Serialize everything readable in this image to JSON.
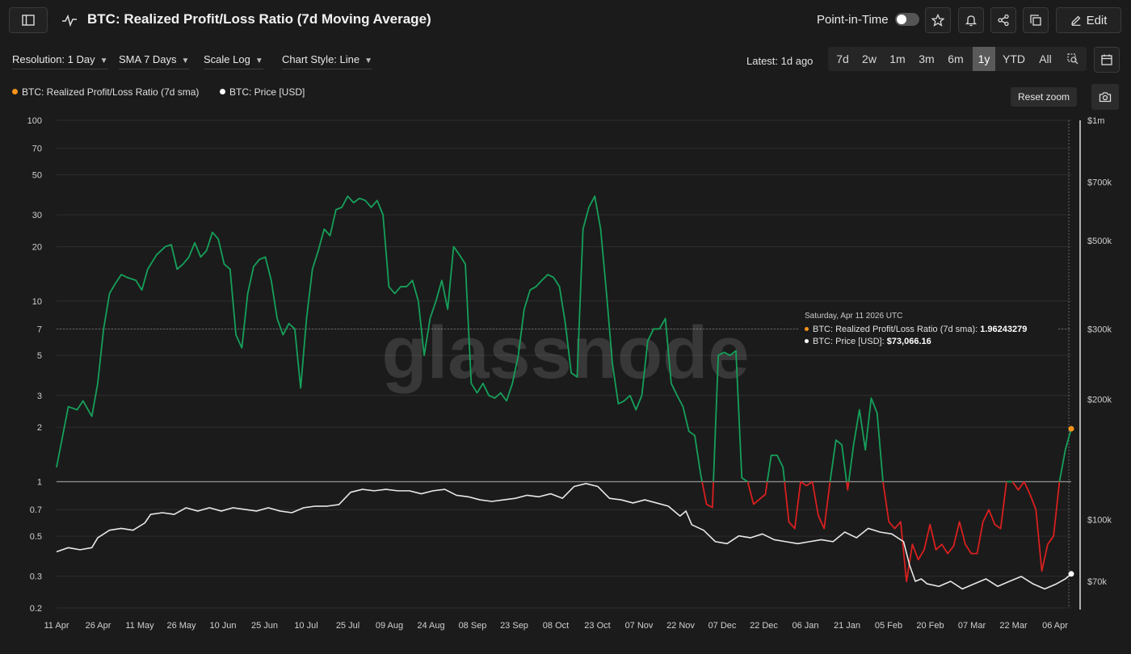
{
  "header": {
    "title": "BTC: Realized Profit/Loss Ratio (7d Moving Average)",
    "point_in_time_label": "Point-in-Time",
    "edit_label": "Edit"
  },
  "controls": {
    "resolution": "Resolution: 1 Day",
    "sma": "SMA 7 Days",
    "scale": "Scale Log",
    "chart_style": "Chart Style: Line",
    "latest": "Latest: 1d ago",
    "ranges": [
      "7d",
      "2w",
      "1m",
      "3m",
      "6m",
      "1y",
      "YTD",
      "All"
    ],
    "active_range": "1y",
    "reset_zoom": "Reset zoom"
  },
  "legend": {
    "ratio": "BTC: Realized Profit/Loss Ratio (7d sma)",
    "price": "BTC: Price [USD]"
  },
  "tooltip": {
    "date": "Saturday, Apr 11 2026 UTC",
    "ratio_label": "BTC: Realized Profit/Loss Ratio (7d sma):",
    "ratio_value": "1.96243279",
    "price_label": "BTC: Price [USD]:",
    "price_value": "$73,066.16"
  },
  "watermark": "glassnode",
  "colors": {
    "above_one": "#16a05a",
    "below_one": "#d91f1f",
    "price": "#e8e8e8",
    "marker": "#f7931a"
  },
  "chart_data": {
    "type": "line",
    "x_ticks": [
      "11 Apr",
      "26 Apr",
      "11 May",
      "26 May",
      "10 Jun",
      "25 Jun",
      "10 Jul",
      "25 Jul",
      "09 Aug",
      "24 Aug",
      "08 Sep",
      "23 Sep",
      "08 Oct",
      "23 Oct",
      "07 Nov",
      "22 Nov",
      "07 Dec",
      "22 Dec",
      "06 Jan",
      "21 Jan",
      "05 Feb",
      "20 Feb",
      "07 Mar",
      "22 Mar",
      "06 Apr"
    ],
    "left_axis": {
      "scale": "log",
      "ylim": [
        0.2,
        100
      ],
      "ticks": [
        "100",
        "70",
        "50",
        "30",
        "20",
        "10",
        "7",
        "5",
        "3",
        "2",
        "1",
        "0.7",
        "0.5",
        "0.3",
        "0.2"
      ]
    },
    "right_axis": {
      "scale": "log",
      "ticks": [
        [
          "$1m",
          1000000
        ],
        [
          "$700k",
          700000
        ],
        [
          "$500k",
          500000
        ],
        [
          "$300k",
          300000
        ],
        [
          "$200k",
          200000
        ],
        [
          "$100k",
          100000
        ],
        [
          "$70k",
          70000
        ]
      ]
    },
    "reference_line": 1,
    "series": [
      {
        "name": "BTC: Realized Profit/Loss Ratio (7d sma)",
        "axis": "left",
        "points": [
          [
            0,
            1.2
          ],
          [
            4,
            2.6
          ],
          [
            7,
            2.5
          ],
          [
            9,
            2.8
          ],
          [
            12,
            2.3
          ],
          [
            14,
            3.5
          ],
          [
            16,
            7
          ],
          [
            18,
            11
          ],
          [
            20,
            12.5
          ],
          [
            22,
            14
          ],
          [
            24,
            13.5
          ],
          [
            27,
            13
          ],
          [
            29,
            11.5
          ],
          [
            31,
            15
          ],
          [
            34,
            18
          ],
          [
            37,
            20
          ],
          [
            39,
            20.5
          ],
          [
            41,
            15
          ],
          [
            43,
            16
          ],
          [
            45,
            17.5
          ],
          [
            47,
            21
          ],
          [
            49,
            17.5
          ],
          [
            51,
            19
          ],
          [
            53,
            24
          ],
          [
            55,
            22
          ],
          [
            57,
            16
          ],
          [
            59,
            15
          ],
          [
            61,
            6.5
          ],
          [
            63,
            5.5
          ],
          [
            65,
            11
          ],
          [
            67,
            15.5
          ],
          [
            69,
            17
          ],
          [
            71,
            17.5
          ],
          [
            73,
            13
          ],
          [
            75,
            8
          ],
          [
            77,
            6.5
          ],
          [
            79,
            7.5
          ],
          [
            81,
            7
          ],
          [
            83,
            3.3
          ],
          [
            85,
            8
          ],
          [
            87,
            15
          ],
          [
            89,
            19
          ],
          [
            91,
            25
          ],
          [
            93,
            23
          ],
          [
            95,
            32
          ],
          [
            97,
            33
          ],
          [
            99,
            38
          ],
          [
            101,
            35
          ],
          [
            103,
            37
          ],
          [
            105,
            36
          ],
          [
            107,
            33
          ],
          [
            109,
            36
          ],
          [
            111,
            30
          ],
          [
            113,
            12
          ],
          [
            115,
            11
          ],
          [
            117,
            12
          ],
          [
            119,
            12
          ],
          [
            121,
            13
          ],
          [
            123,
            10
          ],
          [
            125,
            5
          ],
          [
            127,
            8
          ],
          [
            129,
            10
          ],
          [
            131,
            13
          ],
          [
            133,
            9
          ],
          [
            135,
            20
          ],
          [
            137,
            18
          ],
          [
            139,
            16
          ],
          [
            141,
            3.5
          ],
          [
            143,
            3.1
          ],
          [
            145,
            3.5
          ],
          [
            147,
            3
          ],
          [
            149,
            2.9
          ],
          [
            151,
            3.1
          ],
          [
            153,
            2.8
          ],
          [
            155,
            3.5
          ],
          [
            157,
            5
          ],
          [
            159,
            9
          ],
          [
            161,
            11.5
          ],
          [
            163,
            12
          ],
          [
            165,
            13
          ],
          [
            167,
            14
          ],
          [
            169,
            13.5
          ],
          [
            171,
            12
          ],
          [
            173,
            7.5
          ],
          [
            175,
            4
          ],
          [
            177,
            3.8
          ],
          [
            179,
            25
          ],
          [
            181,
            33
          ],
          [
            183,
            38
          ],
          [
            185,
            25
          ],
          [
            187,
            11
          ],
          [
            189,
            4.5
          ],
          [
            191,
            2.7
          ],
          [
            193,
            2.8
          ],
          [
            195,
            3
          ],
          [
            197,
            2.5
          ],
          [
            199,
            3
          ],
          [
            201,
            6
          ],
          [
            203,
            7
          ],
          [
            205,
            7
          ],
          [
            207,
            8
          ],
          [
            209,
            3.5
          ],
          [
            211,
            3
          ],
          [
            213,
            2.6
          ],
          [
            215,
            1.9
          ],
          [
            217,
            1.8
          ],
          [
            219,
            1.1
          ],
          [
            221,
            0.75
          ],
          [
            223,
            0.72
          ],
          [
            225,
            5
          ],
          [
            227,
            5.2
          ],
          [
            229,
            5
          ],
          [
            231,
            5.3
          ],
          [
            233,
            1.05
          ],
          [
            235,
            1
          ],
          [
            237,
            0.75
          ],
          [
            239,
            0.8
          ],
          [
            241,
            0.85
          ],
          [
            243,
            1.4
          ],
          [
            245,
            1.4
          ],
          [
            247,
            1.2
          ],
          [
            249,
            0.6
          ],
          [
            251,
            0.55
          ],
          [
            253,
            1
          ],
          [
            255,
            0.95
          ],
          [
            257,
            1
          ],
          [
            259,
            0.65
          ],
          [
            261,
            0.55
          ],
          [
            263,
            1
          ],
          [
            265,
            1.7
          ],
          [
            267,
            1.6
          ],
          [
            269,
            0.9
          ],
          [
            271,
            1.6
          ],
          [
            273,
            2.5
          ],
          [
            275,
            1.5
          ],
          [
            277,
            2.9
          ],
          [
            279,
            2.4
          ],
          [
            281,
            1
          ],
          [
            283,
            0.6
          ],
          [
            285,
            0.55
          ],
          [
            287,
            0.6
          ],
          [
            289,
            0.28
          ],
          [
            291,
            0.45
          ],
          [
            293,
            0.37
          ],
          [
            295,
            0.42
          ],
          [
            297,
            0.58
          ],
          [
            299,
            0.42
          ],
          [
            301,
            0.45
          ],
          [
            303,
            0.4
          ],
          [
            305,
            0.44
          ],
          [
            307,
            0.6
          ],
          [
            309,
            0.45
          ],
          [
            311,
            0.4
          ],
          [
            313,
            0.4
          ],
          [
            315,
            0.6
          ],
          [
            317,
            0.7
          ],
          [
            319,
            0.58
          ],
          [
            321,
            0.55
          ],
          [
            323,
            1
          ],
          [
            325,
            1
          ],
          [
            327,
            0.9
          ],
          [
            329,
            1
          ],
          [
            331,
            0.85
          ],
          [
            333,
            0.7
          ],
          [
            335,
            0.32
          ],
          [
            337,
            0.45
          ],
          [
            339,
            0.5
          ],
          [
            341,
            1
          ],
          [
            343,
            1.5
          ],
          [
            345,
            1.96243279
          ]
        ]
      },
      {
        "name": "BTC: Price [USD]",
        "axis": "right",
        "points": [
          [
            0,
            83000
          ],
          [
            4,
            85000
          ],
          [
            8,
            84000
          ],
          [
            12,
            85000
          ],
          [
            14,
            90000
          ],
          [
            18,
            94000
          ],
          [
            22,
            95000
          ],
          [
            26,
            94000
          ],
          [
            30,
            98000
          ],
          [
            32,
            103000
          ],
          [
            36,
            104000
          ],
          [
            40,
            103000
          ],
          [
            44,
            107000
          ],
          [
            48,
            105000
          ],
          [
            52,
            107000
          ],
          [
            56,
            105000
          ],
          [
            60,
            107000
          ],
          [
            64,
            106000
          ],
          [
            68,
            105000
          ],
          [
            72,
            107000
          ],
          [
            76,
            105000
          ],
          [
            80,
            104000
          ],
          [
            84,
            107000
          ],
          [
            88,
            108000
          ],
          [
            92,
            108000
          ],
          [
            96,
            109000
          ],
          [
            100,
            117000
          ],
          [
            104,
            119000
          ],
          [
            108,
            118000
          ],
          [
            112,
            119000
          ],
          [
            116,
            118000
          ],
          [
            120,
            118000
          ],
          [
            124,
            116000
          ],
          [
            128,
            118000
          ],
          [
            132,
            119000
          ],
          [
            136,
            115000
          ],
          [
            140,
            114000
          ],
          [
            144,
            112000
          ],
          [
            148,
            111000
          ],
          [
            152,
            112000
          ],
          [
            156,
            113000
          ],
          [
            160,
            115000
          ],
          [
            164,
            114000
          ],
          [
            168,
            116000
          ],
          [
            172,
            113000
          ],
          [
            176,
            121000
          ],
          [
            180,
            123000
          ],
          [
            184,
            121000
          ],
          [
            188,
            113000
          ],
          [
            192,
            112000
          ],
          [
            196,
            110000
          ],
          [
            200,
            112000
          ],
          [
            204,
            110000
          ],
          [
            208,
            108000
          ],
          [
            212,
            102000
          ],
          [
            214,
            105000
          ],
          [
            216,
            97000
          ],
          [
            220,
            94000
          ],
          [
            224,
            88000
          ],
          [
            228,
            87000
          ],
          [
            232,
            91000
          ],
          [
            236,
            90000
          ],
          [
            240,
            92000
          ],
          [
            244,
            89000
          ],
          [
            248,
            88000
          ],
          [
            252,
            87000
          ],
          [
            256,
            88000
          ],
          [
            260,
            89000
          ],
          [
            264,
            88000
          ],
          [
            268,
            93000
          ],
          [
            272,
            90000
          ],
          [
            276,
            95000
          ],
          [
            280,
            93000
          ],
          [
            284,
            92000
          ],
          [
            288,
            88000
          ],
          [
            290,
            77000
          ],
          [
            292,
            70000
          ],
          [
            294,
            71000
          ],
          [
            296,
            69000
          ],
          [
            300,
            68000
          ],
          [
            304,
            70000
          ],
          [
            308,
            67000
          ],
          [
            312,
            69000
          ],
          [
            316,
            71000
          ],
          [
            320,
            68000
          ],
          [
            324,
            70000
          ],
          [
            328,
            72000
          ],
          [
            332,
            69000
          ],
          [
            336,
            67000
          ],
          [
            340,
            69000
          ],
          [
            343,
            71000
          ],
          [
            345,
            73066.16
          ]
        ]
      }
    ],
    "tooltip_ratio": 1.96243279,
    "tooltip_price": 73066.16
  }
}
